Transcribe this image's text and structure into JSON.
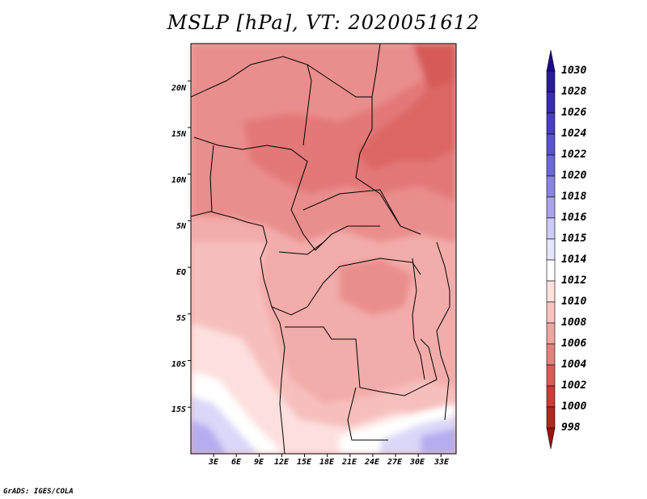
{
  "title": "MSLP [hPa], VT: 2020051612",
  "footer": "GrADS: IGES/COLA",
  "map": {
    "type": "filled-contour",
    "variable": "MSLP",
    "units": "hPa",
    "valid_time": "2020051612",
    "lat_labels": [
      "20N",
      "15N",
      "10N",
      "5N",
      "EQ",
      "5S",
      "10S",
      "15S"
    ],
    "lat_values": [
      20,
      15,
      10,
      5,
      0,
      -5,
      -10,
      -15
    ],
    "lon_labels": [
      "3E",
      "6E",
      "9E",
      "12E",
      "15E",
      "18E",
      "21E",
      "24E",
      "27E",
      "30E",
      "33E"
    ],
    "lon_values": [
      3,
      6,
      9,
      12,
      15,
      18,
      21,
      24,
      27,
      30,
      33
    ],
    "lon_range": [
      0,
      35
    ],
    "lat_range": [
      -20,
      24
    ]
  },
  "colorbar": {
    "labels": [
      "1030",
      "1028",
      "1026",
      "1024",
      "1022",
      "1020",
      "1018",
      "1016",
      "1015",
      "1014",
      "1012",
      "1010",
      "1008",
      "1006",
      "1004",
      "1002",
      "1000",
      "998"
    ],
    "colors": [
      "#1a0c8c",
      "#2b1aa8",
      "#3a2ab8",
      "#4a3cc8",
      "#5a50d4",
      "#6e66dc",
      "#8a82e6",
      "#aaa4ee",
      "#cdcaf6",
      "#e6e6fb",
      "#ffffff",
      "#fde2e0",
      "#f8c4c2",
      "#f0a4a2",
      "#e6807f",
      "#dc5a58",
      "#cf3a37",
      "#b82420",
      "#9a1410"
    ]
  }
}
